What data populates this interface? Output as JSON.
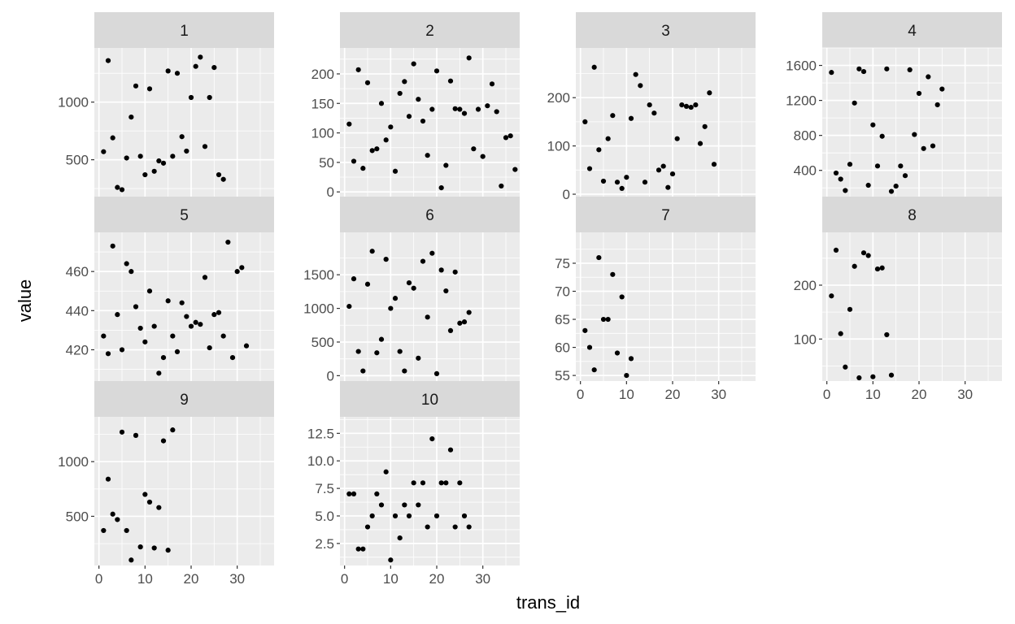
{
  "chart_data": {
    "type": "scatter",
    "xlabel": "trans_id",
    "ylabel": "value",
    "colors": {
      "panel_bg": "#EBEBEB",
      "strip_bg": "#D9D9D9",
      "grid": "#FFFFFF",
      "point": "#000000"
    },
    "x_ticks": [
      0,
      10,
      20,
      30
    ],
    "panels": [
      {
        "title": "1",
        "x_ticks": [
          0,
          10,
          20,
          30
        ],
        "y_ticks": [
          500,
          1000
        ],
        "xlim": [
          -1,
          38
        ],
        "ylim": [
          180,
          1470
        ],
        "points": [
          [
            1,
            570
          ],
          [
            2,
            1360
          ],
          [
            3,
            690
          ],
          [
            4,
            260
          ],
          [
            5,
            240
          ],
          [
            6,
            515
          ],
          [
            7,
            870
          ],
          [
            8,
            1140
          ],
          [
            9,
            530
          ],
          [
            10,
            370
          ],
          [
            11,
            1115
          ],
          [
            12,
            400
          ],
          [
            13,
            490
          ],
          [
            14,
            470
          ],
          [
            15,
            1270
          ],
          [
            16,
            530
          ],
          [
            17,
            1250
          ],
          [
            18,
            700
          ],
          [
            19,
            575
          ],
          [
            20,
            1040
          ],
          [
            21,
            1310
          ],
          [
            22,
            1390
          ],
          [
            23,
            615
          ],
          [
            24,
            1040
          ],
          [
            25,
            1300
          ],
          [
            26,
            370
          ],
          [
            27,
            330
          ]
        ]
      },
      {
        "title": "2",
        "x_ticks": [
          0,
          10,
          20,
          30
        ],
        "y_ticks": [
          0,
          50,
          100,
          150,
          200
        ],
        "xlim": [
          -1,
          38
        ],
        "ylim": [
          -8,
          244
        ],
        "points": [
          [
            1,
            115
          ],
          [
            2,
            52
          ],
          [
            3,
            207
          ],
          [
            4,
            40
          ],
          [
            5,
            185
          ],
          [
            6,
            70
          ],
          [
            7,
            73
          ],
          [
            8,
            150
          ],
          [
            9,
            88
          ],
          [
            10,
            110
          ],
          [
            11,
            35
          ],
          [
            12,
            167
          ],
          [
            13,
            187
          ],
          [
            14,
            128
          ],
          [
            15,
            217
          ],
          [
            16,
            157
          ],
          [
            17,
            120
          ],
          [
            18,
            62
          ],
          [
            19,
            140
          ],
          [
            20,
            205
          ],
          [
            21,
            7
          ],
          [
            22,
            45
          ],
          [
            23,
            188
          ],
          [
            24,
            141
          ],
          [
            25,
            140
          ],
          [
            26,
            133
          ],
          [
            27,
            227
          ],
          [
            28,
            73
          ],
          [
            29,
            140
          ],
          [
            30,
            60
          ],
          [
            31,
            146
          ],
          [
            32,
            183
          ],
          [
            33,
            136
          ],
          [
            34,
            10
          ],
          [
            35,
            92
          ],
          [
            36,
            95
          ],
          [
            37,
            38
          ]
        ]
      },
      {
        "title": "3",
        "x_ticks": [
          0,
          10,
          20,
          30
        ],
        "y_ticks": [
          0,
          100,
          200
        ],
        "xlim": [
          -1,
          38
        ],
        "ylim": [
          -5,
          303
        ],
        "points": [
          [
            1,
            150
          ],
          [
            2,
            53
          ],
          [
            3,
            263
          ],
          [
            4,
            92
          ],
          [
            5,
            27
          ],
          [
            6,
            115
          ],
          [
            7,
            163
          ],
          [
            8,
            25
          ],
          [
            9,
            12
          ],
          [
            10,
            35
          ],
          [
            11,
            157
          ],
          [
            12,
            248
          ],
          [
            13,
            225
          ],
          [
            14,
            25
          ],
          [
            15,
            185
          ],
          [
            16,
            168
          ],
          [
            17,
            50
          ],
          [
            18,
            58
          ],
          [
            19,
            14
          ],
          [
            20,
            42
          ],
          [
            21,
            115
          ],
          [
            22,
            185
          ],
          [
            23,
            182
          ],
          [
            24,
            180
          ],
          [
            25,
            185
          ],
          [
            26,
            105
          ],
          [
            27,
            140
          ],
          [
            28,
            210
          ],
          [
            29,
            62
          ]
        ]
      },
      {
        "title": "4",
        "x_ticks": [
          0,
          10,
          20,
          30
        ],
        "y_ticks": [
          400,
          800,
          1200,
          1600
        ],
        "xlim": [
          -1,
          38
        ],
        "ylim": [
          100,
          1800
        ],
        "points": [
          [
            1,
            1520
          ],
          [
            2,
            370
          ],
          [
            3,
            300
          ],
          [
            4,
            170
          ],
          [
            5,
            470
          ],
          [
            6,
            1170
          ],
          [
            7,
            1560
          ],
          [
            8,
            1530
          ],
          [
            9,
            230
          ],
          [
            10,
            920
          ],
          [
            11,
            450
          ],
          [
            12,
            790
          ],
          [
            13,
            1560
          ],
          [
            14,
            160
          ],
          [
            15,
            220
          ],
          [
            16,
            450
          ],
          [
            17,
            340
          ],
          [
            18,
            1550
          ],
          [
            19,
            810
          ],
          [
            20,
            1280
          ],
          [
            21,
            650
          ],
          [
            22,
            1470
          ],
          [
            23,
            680
          ],
          [
            24,
            1150
          ],
          [
            25,
            1330
          ]
        ]
      },
      {
        "title": "5",
        "x_ticks": [
          0,
          10,
          20,
          30
        ],
        "y_ticks": [
          420,
          440,
          460
        ],
        "xlim": [
          -1,
          38
        ],
        "ylim": [
          404,
          480
        ],
        "points": [
          [
            1,
            427
          ],
          [
            2,
            418
          ],
          [
            3,
            473
          ],
          [
            4,
            438
          ],
          [
            5,
            420
          ],
          [
            6,
            464
          ],
          [
            7,
            460
          ],
          [
            8,
            442
          ],
          [
            9,
            431
          ],
          [
            10,
            424
          ],
          [
            11,
            450
          ],
          [
            12,
            432
          ],
          [
            13,
            408
          ],
          [
            14,
            416
          ],
          [
            15,
            445
          ],
          [
            16,
            427
          ],
          [
            17,
            419
          ],
          [
            18,
            444
          ],
          [
            19,
            437
          ],
          [
            20,
            432
          ],
          [
            21,
            434
          ],
          [
            22,
            433
          ],
          [
            23,
            457
          ],
          [
            24,
            421
          ],
          [
            25,
            438
          ],
          [
            26,
            439
          ],
          [
            27,
            427
          ],
          [
            28,
            475
          ],
          [
            29,
            416
          ],
          [
            30,
            460
          ],
          [
            31,
            462
          ],
          [
            32,
            422
          ]
        ]
      },
      {
        "title": "6",
        "x_ticks": [
          0,
          10,
          20,
          30
        ],
        "y_ticks": [
          0,
          500,
          1000,
          1500
        ],
        "xlim": [
          -1,
          38
        ],
        "ylim": [
          -80,
          2130
        ],
        "points": [
          [
            1,
            1030
          ],
          [
            2,
            1440
          ],
          [
            3,
            360
          ],
          [
            4,
            70
          ],
          [
            5,
            1360
          ],
          [
            6,
            1850
          ],
          [
            7,
            340
          ],
          [
            8,
            540
          ],
          [
            9,
            1730
          ],
          [
            10,
            1000
          ],
          [
            11,
            1150
          ],
          [
            12,
            360
          ],
          [
            13,
            70
          ],
          [
            14,
            1380
          ],
          [
            15,
            1300
          ],
          [
            16,
            260
          ],
          [
            17,
            1700
          ],
          [
            18,
            870
          ],
          [
            19,
            1820
          ],
          [
            20,
            30
          ],
          [
            21,
            1570
          ],
          [
            22,
            1260
          ],
          [
            23,
            670
          ],
          [
            24,
            1540
          ],
          [
            25,
            780
          ],
          [
            26,
            800
          ],
          [
            27,
            940
          ]
        ]
      },
      {
        "title": "7",
        "x_ticks": [
          0,
          10,
          20,
          30
        ],
        "y_ticks": [
          55,
          60,
          65,
          70,
          75
        ],
        "xlim": [
          -1,
          38
        ],
        "ylim": [
          54,
          80.5
        ],
        "points": [
          [
            1,
            63
          ],
          [
            2,
            60
          ],
          [
            3,
            56
          ],
          [
            4,
            76
          ],
          [
            5,
            65
          ],
          [
            6,
            65
          ],
          [
            7,
            73
          ],
          [
            8,
            59
          ],
          [
            9,
            69
          ],
          [
            10,
            55
          ],
          [
            11,
            58
          ]
        ]
      },
      {
        "title": "8",
        "x_ticks": [
          0,
          10,
          20,
          30
        ],
        "y_ticks": [
          100,
          200
        ],
        "xlim": [
          -1,
          38
        ],
        "ylim": [
          22,
          298
        ],
        "points": [
          [
            1,
            180
          ],
          [
            2,
            265
          ],
          [
            3,
            110
          ],
          [
            4,
            48
          ],
          [
            5,
            155
          ],
          [
            6,
            235
          ],
          [
            7,
            28
          ],
          [
            8,
            260
          ],
          [
            9,
            255
          ],
          [
            10,
            30
          ],
          [
            11,
            230
          ],
          [
            12,
            232
          ],
          [
            13,
            108
          ],
          [
            14,
            33
          ]
        ]
      },
      {
        "title": "9",
        "x_ticks": [
          0,
          10,
          20,
          30
        ],
        "y_ticks": [
          500,
          1000
        ],
        "xlim": [
          -1,
          38
        ],
        "ylim": [
          50,
          1410
        ],
        "points": [
          [
            1,
            370
          ],
          [
            2,
            840
          ],
          [
            3,
            520
          ],
          [
            4,
            470
          ],
          [
            5,
            1270
          ],
          [
            6,
            370
          ],
          [
            7,
            100
          ],
          [
            8,
            1240
          ],
          [
            9,
            220
          ],
          [
            10,
            700
          ],
          [
            11,
            630
          ],
          [
            12,
            210
          ],
          [
            13,
            580
          ],
          [
            14,
            1190
          ],
          [
            15,
            190
          ],
          [
            16,
            1290
          ]
        ]
      },
      {
        "title": "10",
        "x_ticks": [
          0,
          10,
          20,
          30
        ],
        "y_ticks": [
          2.5,
          5.0,
          7.5,
          10.0,
          12.5
        ],
        "xlim": [
          -1,
          38
        ],
        "ylim": [
          0.5,
          14.0
        ],
        "points": [
          [
            1,
            7
          ],
          [
            2,
            7
          ],
          [
            3,
            2
          ],
          [
            4,
            2
          ],
          [
            5,
            4
          ],
          [
            6,
            5
          ],
          [
            7,
            7
          ],
          [
            8,
            6
          ],
          [
            9,
            9
          ],
          [
            10,
            1
          ],
          [
            11,
            5
          ],
          [
            12,
            3
          ],
          [
            13,
            6
          ],
          [
            14,
            5
          ],
          [
            15,
            8
          ],
          [
            16,
            6
          ],
          [
            17,
            8
          ],
          [
            18,
            4
          ],
          [
            19,
            12
          ],
          [
            20,
            5
          ],
          [
            21,
            8
          ],
          [
            22,
            8
          ],
          [
            23,
            11
          ],
          [
            24,
            4
          ],
          [
            25,
            8
          ],
          [
            26,
            5
          ],
          [
            27,
            4
          ]
        ]
      }
    ]
  }
}
